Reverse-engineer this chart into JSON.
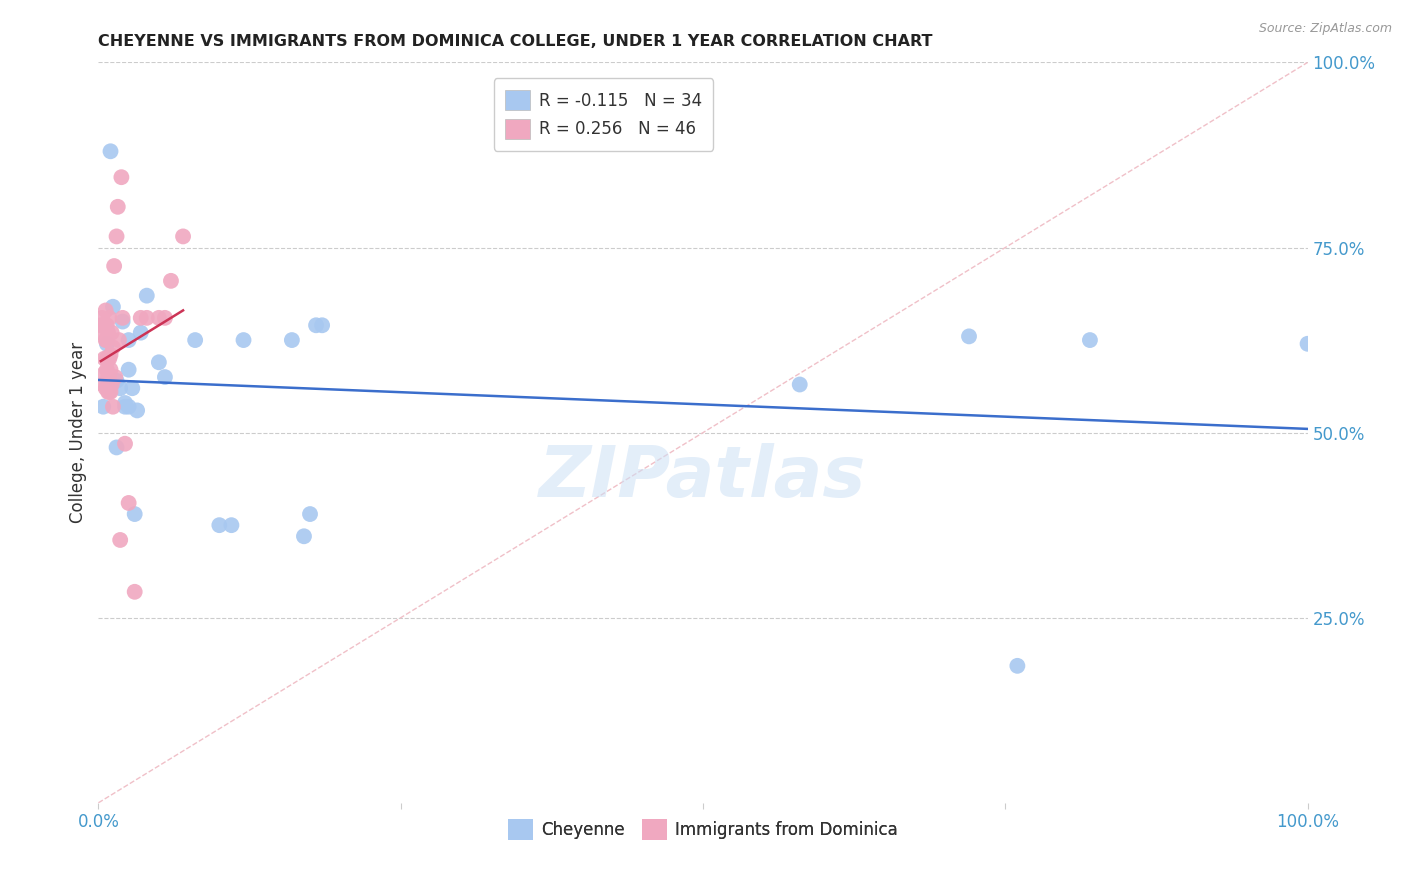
{
  "title": "CHEYENNE VS IMMIGRANTS FROM DOMINICA COLLEGE, UNDER 1 YEAR CORRELATION CHART",
  "source": "Source: ZipAtlas.com",
  "ylabel": "College, Under 1 year",
  "legend_label_blue": "Cheyenne",
  "legend_label_pink": "Immigrants from Dominica",
  "blue_R": -0.115,
  "blue_N": 34,
  "pink_R": 0.256,
  "pink_N": 46,
  "blue_color": "#a8c8f0",
  "pink_color": "#f0a8c0",
  "blue_line_color": "#3b6ecc",
  "pink_line_color": "#cc3355",
  "diagonal_color": "#f0c0c8",
  "axis_color": "#4499cc",
  "watermark": "ZIPatlas",
  "blue_x": [
    0.004,
    0.007,
    0.01,
    0.012,
    0.015,
    0.015,
    0.018,
    0.02,
    0.022,
    0.022,
    0.025,
    0.025,
    0.025,
    0.028,
    0.03,
    0.032,
    0.035,
    0.04,
    0.05,
    0.055,
    0.08,
    0.1,
    0.11,
    0.12,
    0.16,
    0.17,
    0.175,
    0.18,
    0.185,
    0.58,
    0.72,
    0.76,
    0.82,
    1.0
  ],
  "blue_y": [
    0.535,
    0.62,
    0.88,
    0.67,
    0.57,
    0.48,
    0.56,
    0.65,
    0.535,
    0.54,
    0.535,
    0.585,
    0.625,
    0.56,
    0.39,
    0.53,
    0.635,
    0.685,
    0.595,
    0.575,
    0.625,
    0.375,
    0.375,
    0.625,
    0.625,
    0.36,
    0.39,
    0.645,
    0.645,
    0.565,
    0.63,
    0.185,
    0.625,
    0.62
  ],
  "pink_x": [
    0.002,
    0.002,
    0.003,
    0.004,
    0.004,
    0.005,
    0.005,
    0.006,
    0.006,
    0.006,
    0.007,
    0.007,
    0.007,
    0.007,
    0.008,
    0.008,
    0.008,
    0.008,
    0.009,
    0.009,
    0.009,
    0.009,
    0.01,
    0.01,
    0.01,
    0.011,
    0.011,
    0.012,
    0.012,
    0.013,
    0.014,
    0.015,
    0.016,
    0.017,
    0.018,
    0.019,
    0.02,
    0.022,
    0.025,
    0.03,
    0.035,
    0.04,
    0.05,
    0.055,
    0.06,
    0.07
  ],
  "pink_y": [
    0.635,
    0.645,
    0.655,
    0.565,
    0.645,
    0.58,
    0.6,
    0.625,
    0.56,
    0.665,
    0.585,
    0.6,
    0.625,
    0.645,
    0.555,
    0.575,
    0.6,
    0.635,
    0.555,
    0.575,
    0.6,
    0.655,
    0.555,
    0.585,
    0.605,
    0.565,
    0.635,
    0.535,
    0.615,
    0.725,
    0.575,
    0.765,
    0.805,
    0.625,
    0.355,
    0.845,
    0.655,
    0.485,
    0.405,
    0.285,
    0.655,
    0.655,
    0.655,
    0.655,
    0.705,
    0.765
  ],
  "xlim": [
    0.0,
    1.0
  ],
  "ylim": [
    0.0,
    1.0
  ],
  "xticks": [
    0.0,
    0.25,
    0.5,
    0.75,
    1.0
  ],
  "xtick_labels": [
    "0.0%",
    "",
    "",
    "",
    "100.0%"
  ],
  "yticks_right": [
    0.25,
    0.5,
    0.75,
    1.0
  ],
  "ytick_labels_right": [
    "25.0%",
    "50.0%",
    "75.0%",
    "100.0%"
  ]
}
